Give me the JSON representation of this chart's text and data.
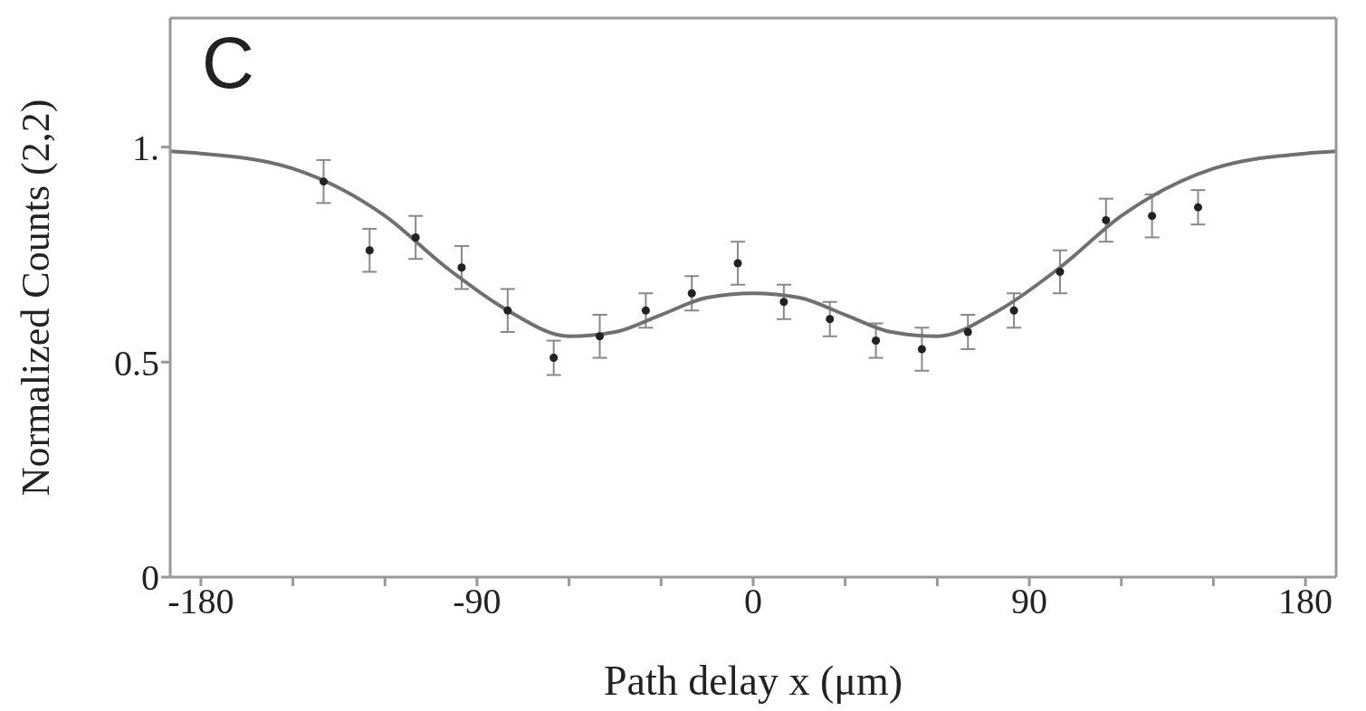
{
  "chart_data": {
    "type": "scatter",
    "title": "C",
    "xlabel": "Path delay x (μm)",
    "ylabel": "Normalized Counts (2,2)",
    "xlim": [
      -190,
      190
    ],
    "ylim": [
      0,
      1.3
    ],
    "xticks": [
      -180,
      {
        "value": -150,
        "label": null
      },
      {
        "value": -120,
        "label": null
      },
      -90,
      {
        "value": -60,
        "label": null
      },
      {
        "value": -30,
        "label": null
      },
      0,
      {
        "value": 30,
        "label": null
      },
      {
        "value": 60,
        "label": null
      },
      90,
      {
        "value": 120,
        "label": null
      },
      {
        "value": 150,
        "label": null
      },
      180
    ],
    "yticks": [
      0,
      0.5,
      {
        "value": 1,
        "label": "1."
      }
    ],
    "grid": false,
    "legend": false,
    "series": [
      {
        "color": "#222222",
        "marker": "circle",
        "x": [
          -140,
          -125,
          -110,
          -95,
          -80,
          -65,
          -50,
          -35,
          -20,
          -5,
          10,
          25,
          40,
          55,
          70,
          85,
          100,
          115,
          130,
          145
        ],
        "values": [
          0.92,
          0.76,
          0.79,
          0.72,
          0.62,
          0.51,
          0.56,
          0.62,
          0.66,
          0.73,
          0.64,
          0.6,
          0.55,
          0.53,
          0.57,
          0.62,
          0.71,
          0.83,
          0.84,
          0.86
        ],
        "errors": [
          0.05,
          0.05,
          0.05,
          0.05,
          0.05,
          0.04,
          0.05,
          0.04,
          0.04,
          0.05,
          0.04,
          0.04,
          0.04,
          0.05,
          0.04,
          0.04,
          0.05,
          0.05,
          0.05,
          0.04
        ]
      },
      {
        "type": "line",
        "color": "#707070",
        "marker": "none",
        "line_style": "solid",
        "x": [
          -190,
          -180,
          -150,
          -120,
          -100,
          -80,
          -60,
          -45,
          -30,
          -15,
          0,
          15,
          30,
          45,
          60,
          80,
          100,
          120,
          150,
          180,
          190
        ],
        "values": [
          0.99,
          0.985,
          0.95,
          0.84,
          0.72,
          0.62,
          0.56,
          0.57,
          0.61,
          0.65,
          0.66,
          0.65,
          0.61,
          0.57,
          0.56,
          0.62,
          0.72,
          0.84,
          0.95,
          0.985,
          0.99
        ]
      }
    ]
  }
}
